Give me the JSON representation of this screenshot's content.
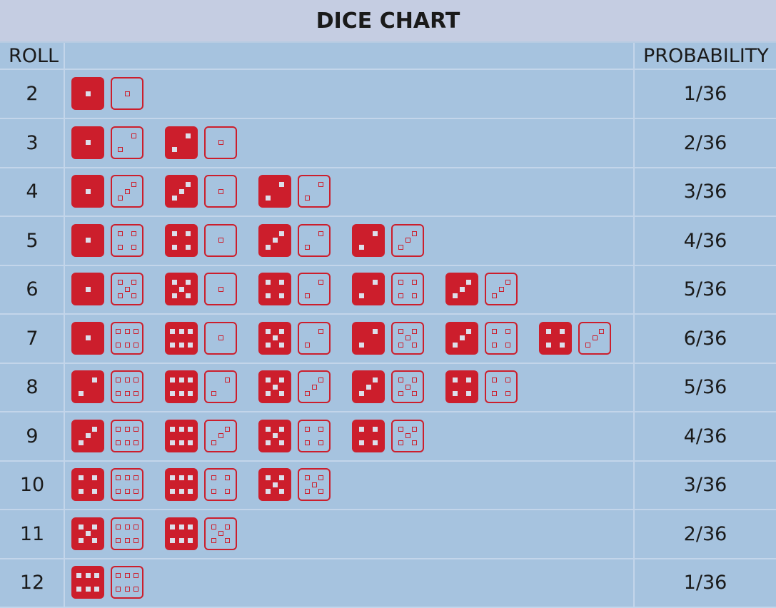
{
  "title": "DICE CHART",
  "headers": {
    "roll": "ROLL",
    "probability": "PROBABILITY"
  },
  "colors": {
    "background": "#a6c3df",
    "title_bar": "#c5cde2",
    "die_red": "#cc1e2c",
    "grid_line": "#c3d5ea"
  },
  "rows": [
    {
      "roll": "2",
      "probability": "1/36",
      "pairs": [
        [
          1,
          1
        ]
      ]
    },
    {
      "roll": "3",
      "probability": "2/36",
      "pairs": [
        [
          1,
          2
        ],
        [
          2,
          1
        ]
      ]
    },
    {
      "roll": "4",
      "probability": "3/36",
      "pairs": [
        [
          1,
          3
        ],
        [
          3,
          1
        ],
        [
          2,
          2
        ]
      ]
    },
    {
      "roll": "5",
      "probability": "4/36",
      "pairs": [
        [
          1,
          4
        ],
        [
          4,
          1
        ],
        [
          3,
          2
        ],
        [
          2,
          3
        ]
      ]
    },
    {
      "roll": "6",
      "probability": "5/36",
      "pairs": [
        [
          1,
          5
        ],
        [
          5,
          1
        ],
        [
          4,
          2
        ],
        [
          2,
          4
        ],
        [
          3,
          3
        ]
      ]
    },
    {
      "roll": "7",
      "probability": "6/36",
      "pairs": [
        [
          1,
          6
        ],
        [
          6,
          1
        ],
        [
          5,
          2
        ],
        [
          2,
          5
        ],
        [
          3,
          4
        ],
        [
          4,
          3
        ]
      ]
    },
    {
      "roll": "8",
      "probability": "5/36",
      "pairs": [
        [
          2,
          6
        ],
        [
          6,
          2
        ],
        [
          5,
          3
        ],
        [
          3,
          5
        ],
        [
          4,
          4
        ]
      ]
    },
    {
      "roll": "9",
      "probability": "4/36",
      "pairs": [
        [
          3,
          6
        ],
        [
          6,
          3
        ],
        [
          5,
          4
        ],
        [
          4,
          5
        ]
      ]
    },
    {
      "roll": "10",
      "probability": "3/36",
      "pairs": [
        [
          4,
          6
        ],
        [
          6,
          4
        ],
        [
          5,
          5
        ]
      ]
    },
    {
      "roll": "11",
      "probability": "2/36",
      "pairs": [
        [
          5,
          6
        ],
        [
          6,
          5
        ]
      ]
    },
    {
      "roll": "12",
      "probability": "1/36",
      "pairs": [
        [
          6,
          6
        ]
      ]
    }
  ]
}
